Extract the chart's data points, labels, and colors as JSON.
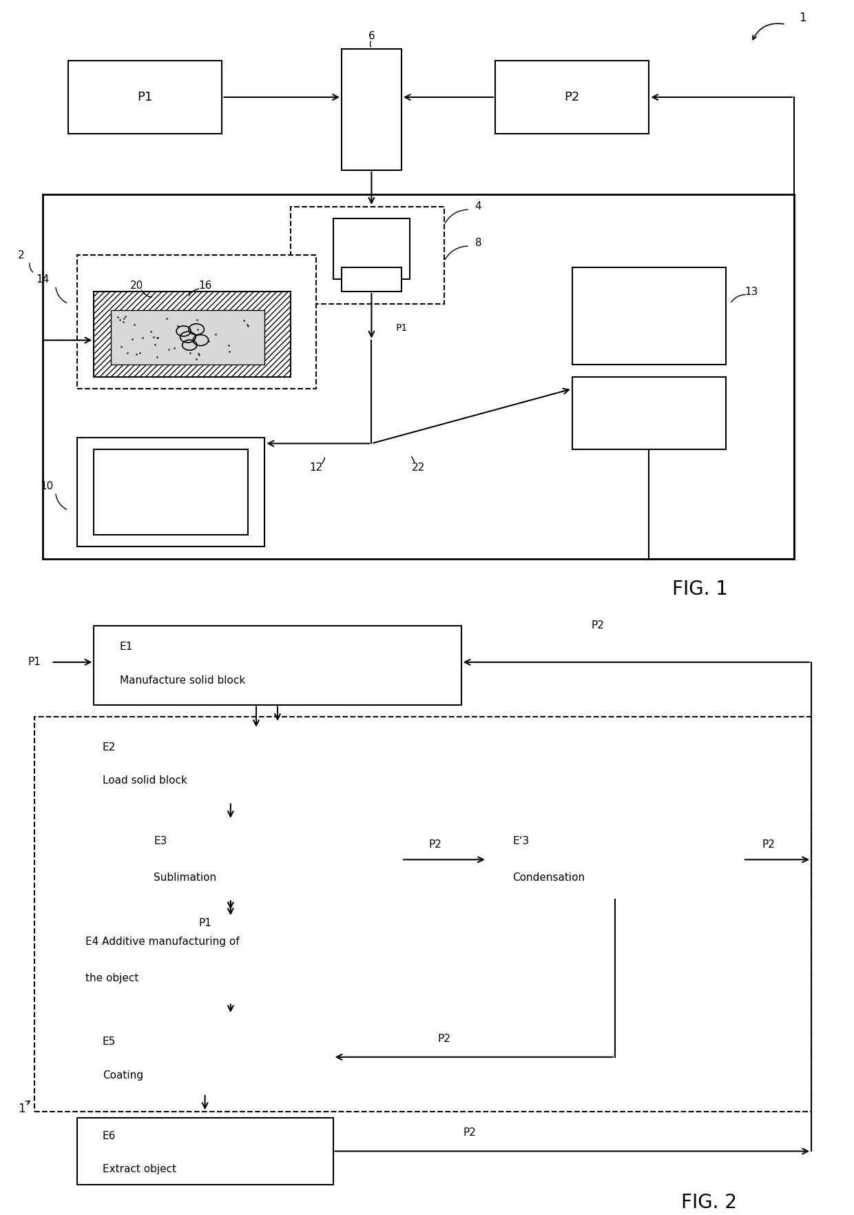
{
  "bg_color": "#ffffff",
  "line_color": "#000000",
  "fig1": {
    "label_ref": "1",
    "label_2": "2",
    "label_4": "4",
    "label_6": "6",
    "label_8": "8",
    "label_10": "10",
    "label_12": "12",
    "label_13": "13",
    "label_14": "14",
    "label_16": "16",
    "label_20": "20",
    "label_22": "22",
    "label_P1_box": "P1",
    "label_P2_box": "P2",
    "label_P1_inside": "P1",
    "title": "FIG. 1"
  },
  "fig2": {
    "title": "FIG. 2",
    "label_ref": "1",
    "label_P1": "P1",
    "label_P2_top": "P2",
    "E1_line1": "E1",
    "E1_line2": "Manufacture solid block",
    "E2_line1": "E2",
    "E2_line2": "Load solid block",
    "E3_line1": "E3",
    "E3_line2": "Sublimation",
    "E3p_line1": "E‘3",
    "E3p_line2": "Condensation",
    "E4_line1": "E4 Additive manufacturing of",
    "E4_line2": "the object",
    "E5_line1": "E5",
    "E5_line2": "Coating",
    "E6_line1": "E6",
    "E6_line2": "Extract object",
    "P1_label": "P1",
    "P2_label": "P2"
  }
}
